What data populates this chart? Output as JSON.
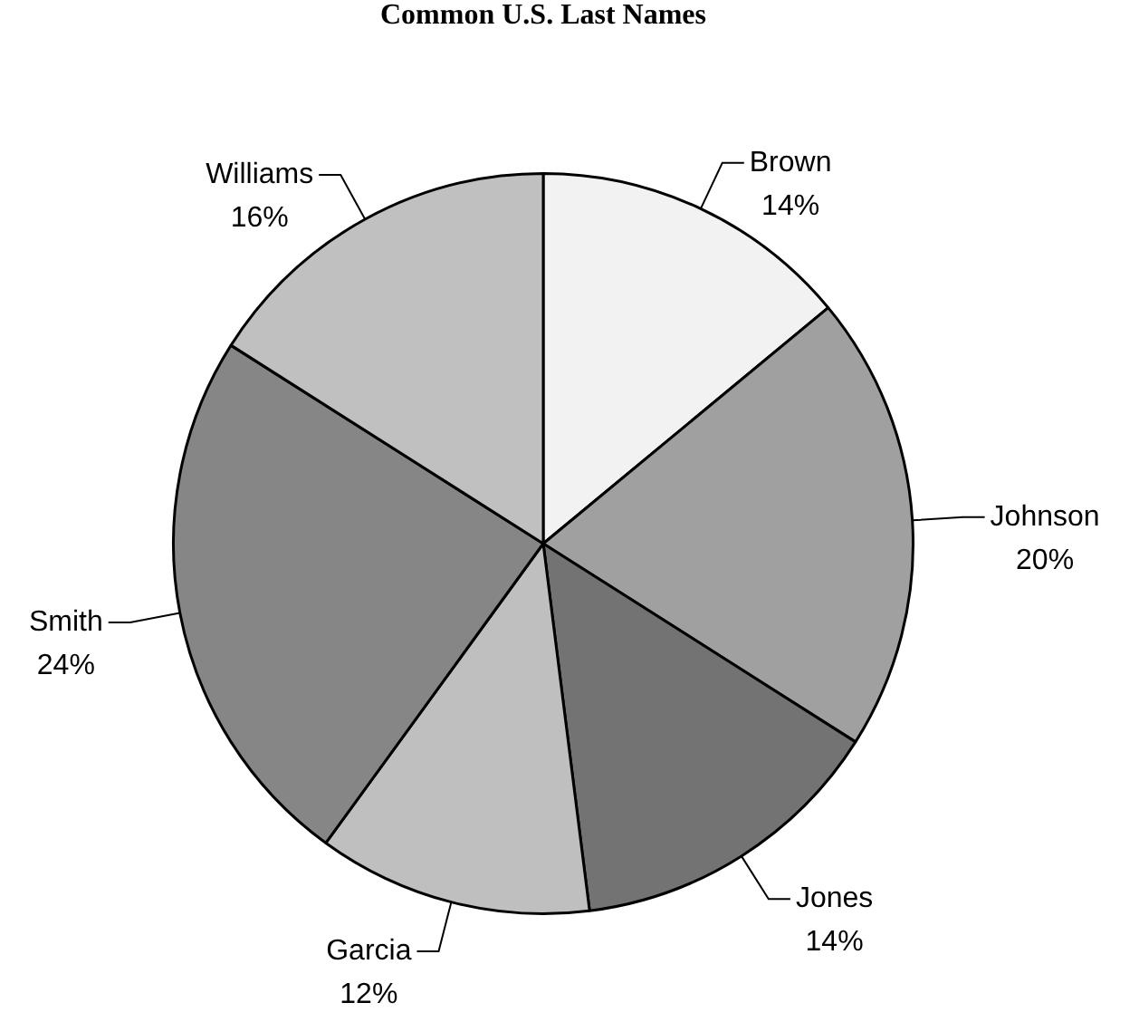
{
  "chart_data": {
    "type": "pie",
    "title": "Common U.S. Last Names",
    "categories": [
      "Brown",
      "Johnson",
      "Jones",
      "Garcia",
      "Smith",
      "Williams"
    ],
    "values": [
      14,
      20,
      14,
      12,
      24,
      16
    ],
    "value_labels": [
      "14%",
      "20%",
      "14%",
      "12%",
      "24%",
      "16%"
    ],
    "colors": [
      "#f2f2f2",
      "#a0a0a0",
      "#737373",
      "#bfbfbf",
      "#868686",
      "#c0c0c0"
    ],
    "legend": false
  }
}
